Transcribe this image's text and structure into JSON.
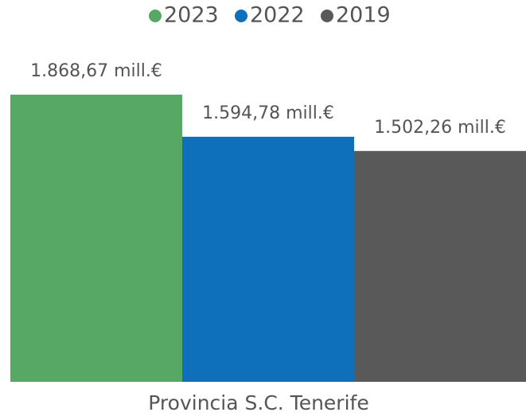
{
  "chart_data": {
    "type": "bar",
    "categories": [
      "Provincia S.C. Tenerife"
    ],
    "series": [
      {
        "name": "2023",
        "color": "#57a864",
        "values": [
          1868.67
        ],
        "value_labels": [
          "1.868,67 mill.€"
        ]
      },
      {
        "name": "2022",
        "color": "#0e6fba",
        "values": [
          1594.78
        ],
        "value_labels": [
          "1.594,78 mill.€"
        ]
      },
      {
        "name": "2019",
        "color": "#595959",
        "values": [
          1502.26
        ],
        "value_labels": [
          "1.502,26 mill.€"
        ]
      }
    ],
    "legend": "top"
  }
}
